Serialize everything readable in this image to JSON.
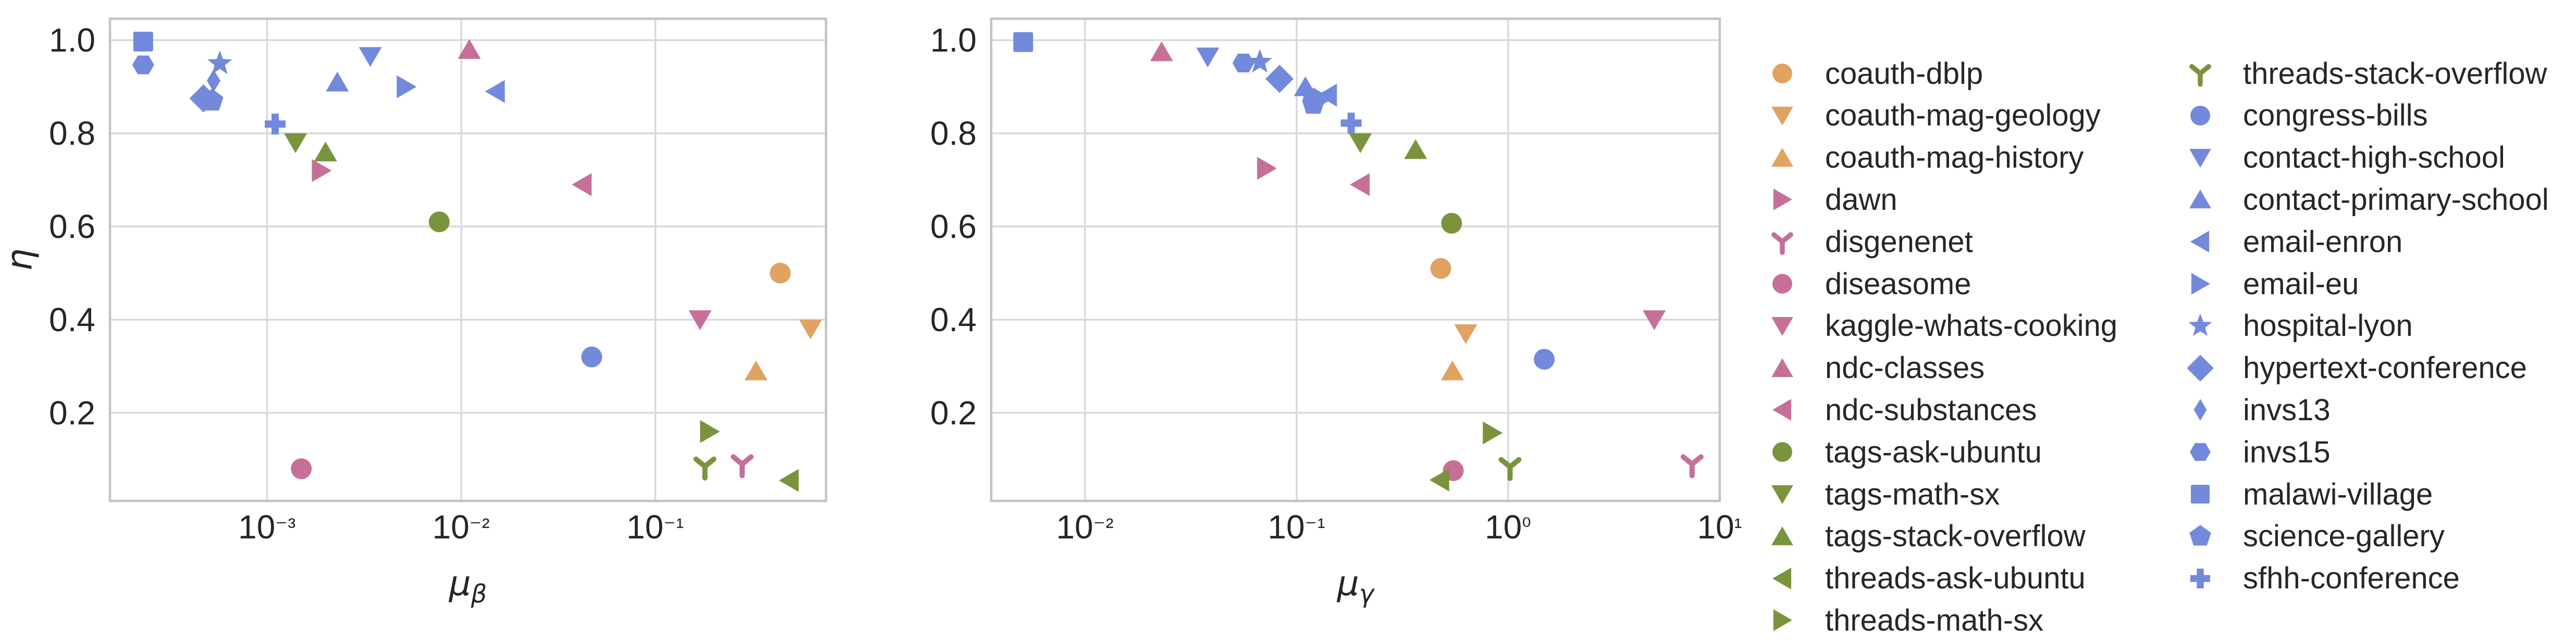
{
  "palette": {
    "orange": "#E0A362",
    "pink": "#C67099",
    "green": "#7A943E",
    "blue": "#7289DC",
    "grid": "#D9D9D9",
    "spine": "#C3C3C3",
    "text": "#262626"
  },
  "series_style": {
    "coauth-dblp": {
      "marker": "circle",
      "color": "orange"
    },
    "coauth-mag-geology": {
      "marker": "triangle-down",
      "color": "orange"
    },
    "coauth-mag-history": {
      "marker": "triangle-up",
      "color": "orange"
    },
    "dawn": {
      "marker": "triangle-right",
      "color": "pink"
    },
    "disgenenet": {
      "marker": "tri-y",
      "color": "pink"
    },
    "diseasome": {
      "marker": "circle",
      "color": "pink"
    },
    "kaggle-whats-cooking": {
      "marker": "triangle-down",
      "color": "pink"
    },
    "ndc-classes": {
      "marker": "triangle-up",
      "color": "pink"
    },
    "ndc-substances": {
      "marker": "triangle-left",
      "color": "pink"
    },
    "tags-ask-ubuntu": {
      "marker": "circle",
      "color": "green"
    },
    "tags-math-sx": {
      "marker": "triangle-down",
      "color": "green"
    },
    "tags-stack-overflow": {
      "marker": "triangle-up",
      "color": "green"
    },
    "threads-ask-ubuntu": {
      "marker": "triangle-left",
      "color": "green"
    },
    "threads-math-sx": {
      "marker": "triangle-right",
      "color": "green"
    },
    "threads-stack-overflow": {
      "marker": "tri-y",
      "color": "green"
    },
    "congress-bills": {
      "marker": "circle",
      "color": "blue"
    },
    "contact-high-school": {
      "marker": "triangle-down",
      "color": "blue"
    },
    "contact-primary-school": {
      "marker": "triangle-up",
      "color": "blue"
    },
    "email-enron": {
      "marker": "triangle-left",
      "color": "blue"
    },
    "email-eu": {
      "marker": "triangle-right",
      "color": "blue"
    },
    "hospital-lyon": {
      "marker": "star",
      "color": "blue"
    },
    "hypertext-conference": {
      "marker": "diamond",
      "color": "blue"
    },
    "invs13": {
      "marker": "thin-diamond",
      "color": "blue"
    },
    "invs15": {
      "marker": "hexagon",
      "color": "blue"
    },
    "malawi-village": {
      "marker": "square",
      "color": "blue"
    },
    "science-gallery": {
      "marker": "pentagon",
      "color": "blue"
    },
    "sfhh-conference": {
      "marker": "plus",
      "color": "blue"
    }
  },
  "legend": {
    "position": "right",
    "columns": [
      [
        "coauth-dblp",
        "coauth-mag-geology",
        "coauth-mag-history",
        "dawn",
        "disgenenet",
        "diseasome",
        "kaggle-whats-cooking",
        "ndc-classes",
        "ndc-substances",
        "tags-ask-ubuntu",
        "tags-math-sx",
        "tags-stack-overflow",
        "threads-ask-ubuntu",
        "threads-math-sx"
      ],
      [
        "threads-stack-overflow",
        "congress-bills",
        "contact-high-school",
        "contact-primary-school",
        "email-enron",
        "email-eu",
        "hospital-lyon",
        "hypertext-conference",
        "invs13",
        "invs15",
        "malawi-village",
        "science-gallery",
        "sfhh-conference"
      ]
    ]
  },
  "chart_data": [
    {
      "id": "left",
      "type": "scatter",
      "title": "",
      "xlabel": {
        "base": "μ",
        "sub": "β"
      },
      "ylabel": "η",
      "xscale": "log",
      "yscale": "linear",
      "grid": true,
      "xlim": [
        0.000155,
        0.757
      ],
      "ylim": [
        0.011,
        1.046
      ],
      "xticks": [
        {
          "value": 0.001,
          "label": "10⁻³"
        },
        {
          "value": 0.01,
          "label": "10⁻²"
        },
        {
          "value": 0.1,
          "label": "10⁻¹"
        }
      ],
      "yticks": [
        {
          "value": 1.0,
          "label": "1.0"
        },
        {
          "value": 0.8,
          "label": "0.8"
        },
        {
          "value": 0.6,
          "label": "0.6"
        },
        {
          "value": 0.4,
          "label": "0.4"
        },
        {
          "value": 0.2,
          "label": "0.2"
        }
      ],
      "points": [
        {
          "name": "coauth-dblp",
          "x": 0.44,
          "y": 0.5
        },
        {
          "name": "coauth-mag-geology",
          "x": 0.63,
          "y": 0.38
        },
        {
          "name": "coauth-mag-history",
          "x": 0.33,
          "y": 0.29
        },
        {
          "name": "dawn",
          "x": 0.0019,
          "y": 0.72
        },
        {
          "name": "disgenenet",
          "x": 0.28,
          "y": 0.09
        },
        {
          "name": "diseasome",
          "x": 0.0015,
          "y": 0.08
        },
        {
          "name": "kaggle-whats-cooking",
          "x": 0.17,
          "y": 0.4
        },
        {
          "name": "ndc-classes",
          "x": 0.011,
          "y": 0.98
        },
        {
          "name": "ndc-substances",
          "x": 0.042,
          "y": 0.69
        },
        {
          "name": "tags-ask-ubuntu",
          "x": 0.0077,
          "y": 0.61
        },
        {
          "name": "tags-math-sx",
          "x": 0.0014,
          "y": 0.78
        },
        {
          "name": "tags-stack-overflow",
          "x": 0.002,
          "y": 0.76
        },
        {
          "name": "threads-ask-ubuntu",
          "x": 0.49,
          "y": 0.055
        },
        {
          "name": "threads-math-sx",
          "x": 0.19,
          "y": 0.16
        },
        {
          "name": "threads-stack-overflow",
          "x": 0.18,
          "y": 0.085
        },
        {
          "name": "congress-bills",
          "x": 0.047,
          "y": 0.32
        },
        {
          "name": "contact-high-school",
          "x": 0.0034,
          "y": 0.965
        },
        {
          "name": "contact-primary-school",
          "x": 0.0023,
          "y": 0.91
        },
        {
          "name": "email-enron",
          "x": 0.015,
          "y": 0.89
        },
        {
          "name": "email-eu",
          "x": 0.0052,
          "y": 0.9
        },
        {
          "name": "hospital-lyon",
          "x": 0.00057,
          "y": 0.95
        },
        {
          "name": "hypertext-conference",
          "x": 0.00047,
          "y": 0.875
        },
        {
          "name": "invs13",
          "x": 0.00053,
          "y": 0.913
        },
        {
          "name": "invs15",
          "x": 0.00023,
          "y": 0.947
        },
        {
          "name": "malawi-village",
          "x": 0.00023,
          "y": 0.997
        },
        {
          "name": "science-gallery",
          "x": 0.00052,
          "y": 0.87
        },
        {
          "name": "sfhh-conference",
          "x": 0.0011,
          "y": 0.82
        }
      ]
    },
    {
      "id": "right",
      "type": "scatter",
      "title": "",
      "xlabel": {
        "base": "μ",
        "sub": "γ"
      },
      "ylabel": null,
      "xscale": "log",
      "yscale": "linear",
      "grid": true,
      "xlim": [
        0.0036,
        10.0
      ],
      "ylim": [
        0.011,
        1.046
      ],
      "xticks": [
        {
          "value": 0.01,
          "label": "10⁻²"
        },
        {
          "value": 0.1,
          "label": "10⁻¹"
        },
        {
          "value": 1.0,
          "label": "10⁰"
        },
        {
          "value": 10.0,
          "label": "10¹"
        }
      ],
      "yticks": [
        {
          "value": 1.0,
          "label": "1.0"
        },
        {
          "value": 0.8,
          "label": "0.8"
        },
        {
          "value": 0.6,
          "label": "0.6"
        },
        {
          "value": 0.4,
          "label": "0.4"
        },
        {
          "value": 0.2,
          "label": "0.2"
        }
      ],
      "points": [
        {
          "name": "coauth-dblp",
          "x": 0.48,
          "y": 0.51
        },
        {
          "name": "coauth-mag-geology",
          "x": 0.63,
          "y": 0.37
        },
        {
          "name": "coauth-mag-history",
          "x": 0.545,
          "y": 0.29
        },
        {
          "name": "dawn",
          "x": 0.072,
          "y": 0.725
        },
        {
          "name": "disgenenet",
          "x": 7.4,
          "y": 0.09
        },
        {
          "name": "diseasome",
          "x": 0.55,
          "y": 0.076
        },
        {
          "name": "kaggle-whats-cooking",
          "x": 4.9,
          "y": 0.4
        },
        {
          "name": "ndc-classes",
          "x": 0.023,
          "y": 0.975
        },
        {
          "name": "ndc-substances",
          "x": 0.2,
          "y": 0.69
        },
        {
          "name": "tags-ask-ubuntu",
          "x": 0.54,
          "y": 0.607
        },
        {
          "name": "tags-math-sx",
          "x": 0.2,
          "y": 0.78
        },
        {
          "name": "tags-stack-overflow",
          "x": 0.365,
          "y": 0.765
        },
        {
          "name": "threads-ask-ubuntu",
          "x": 0.475,
          "y": 0.056
        },
        {
          "name": "threads-math-sx",
          "x": 0.84,
          "y": 0.157
        },
        {
          "name": "threads-stack-overflow",
          "x": 1.02,
          "y": 0.084
        },
        {
          "name": "congress-bills",
          "x": 1.48,
          "y": 0.315
        },
        {
          "name": "contact-high-school",
          "x": 0.038,
          "y": 0.964
        },
        {
          "name": "contact-primary-school",
          "x": 0.11,
          "y": 0.9
        },
        {
          "name": "email-enron",
          "x": 0.14,
          "y": 0.882
        },
        {
          "name": "email-eu",
          "x": 0.132,
          "y": 0.874
        },
        {
          "name": "hospital-lyon",
          "x": 0.067,
          "y": 0.953
        },
        {
          "name": "hypertext-conference",
          "x": 0.083,
          "y": 0.917
        },
        {
          "name": "invs13",
          "x": 0.115,
          "y": 0.875
        },
        {
          "name": "invs15",
          "x": 0.056,
          "y": 0.951
        },
        {
          "name": "malawi-village",
          "x": 0.0051,
          "y": 0.996
        },
        {
          "name": "science-gallery",
          "x": 0.12,
          "y": 0.863
        },
        {
          "name": "sfhh-conference",
          "x": 0.181,
          "y": 0.822
        }
      ]
    }
  ]
}
